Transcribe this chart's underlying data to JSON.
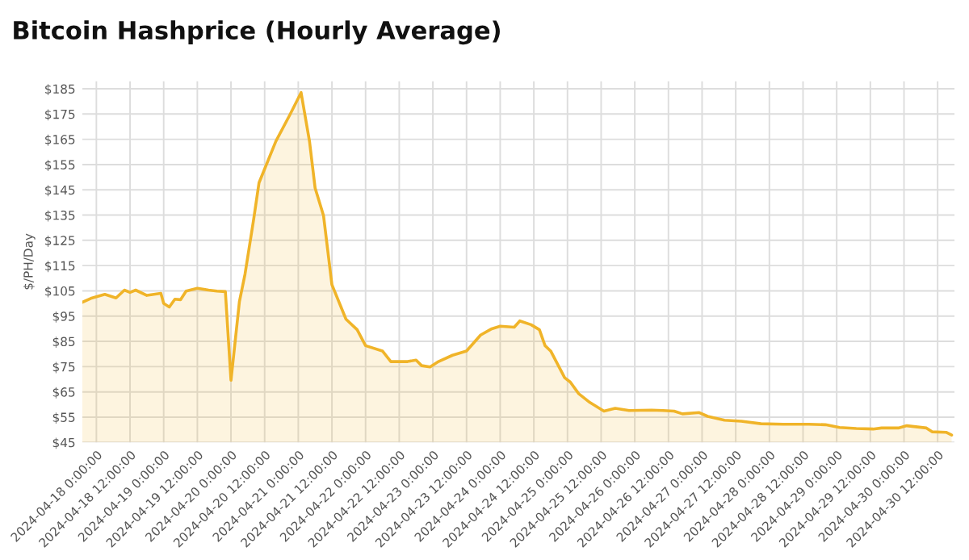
{
  "chart_data": {
    "type": "area",
    "title": "Bitcoin Hashprice (Hourly Average)",
    "ylabel": "$/PH/Day",
    "x": [
      "2024-04-17T19:00",
      "2024-04-17T22:00",
      "2024-04-18T03:00",
      "2024-04-18T07:00",
      "2024-04-18T10:00",
      "2024-04-18T12:00",
      "2024-04-18T14:00",
      "2024-04-18T18:00",
      "2024-04-18T23:00",
      "2024-04-19T00:00",
      "2024-04-19T02:00",
      "2024-04-19T04:00",
      "2024-04-19T06:00",
      "2024-04-19T08:00",
      "2024-04-19T12:00",
      "2024-04-19T16:00",
      "2024-04-19T19:00",
      "2024-04-19T22:00",
      "2024-04-20T00:00",
      "2024-04-20T03:00",
      "2024-04-20T05:00",
      "2024-04-20T08:00",
      "2024-04-20T10:00",
      "2024-04-20T16:00",
      "2024-04-20T21:00",
      "2024-04-21T01:00",
      "2024-04-21T04:00",
      "2024-04-21T06:00",
      "2024-04-21T09:00",
      "2024-04-21T12:00",
      "2024-04-21T17:00",
      "2024-04-21T21:00",
      "2024-04-22T00:00",
      "2024-04-22T06:00",
      "2024-04-22T09:00",
      "2024-04-22T15:00",
      "2024-04-22T18:00",
      "2024-04-22T20:00",
      "2024-04-22T23:00",
      "2024-04-23T02:00",
      "2024-04-23T07:00",
      "2024-04-23T12:00",
      "2024-04-23T17:00",
      "2024-04-23T21:00",
      "2024-04-24T00:00",
      "2024-04-24T05:00",
      "2024-04-24T07:00",
      "2024-04-24T11:00",
      "2024-04-24T14:00",
      "2024-04-24T16:00",
      "2024-04-24T18:00",
      "2024-04-24T23:00",
      "2024-04-25T01:00",
      "2024-04-25T04:00",
      "2024-04-25T08:00",
      "2024-04-25T13:00",
      "2024-04-25T17:00",
      "2024-04-25T22:00",
      "2024-04-26T06:00",
      "2024-04-26T10:00",
      "2024-04-26T14:00",
      "2024-04-26T17:00",
      "2024-04-26T23:00",
      "2024-04-27T02:00",
      "2024-04-27T08:00",
      "2024-04-27T14:00",
      "2024-04-27T21:00",
      "2024-04-28T05:00",
      "2024-04-28T14:00",
      "2024-04-28T20:00",
      "2024-04-29T01:00",
      "2024-04-29T07:00",
      "2024-04-29T13:00",
      "2024-04-29T16:00",
      "2024-04-29T22:00",
      "2024-04-30T01:00",
      "2024-04-30T08:00",
      "2024-04-30T10:00",
      "2024-04-30T15:00",
      "2024-04-30T17:00"
    ],
    "series": [
      {
        "color": "#f0b429",
        "values": [
          100.5,
          102,
          103.6,
          102.2,
          105.3,
          104.4,
          105.3,
          103.2,
          104,
          100,
          98.6,
          101.7,
          101.5,
          104.9,
          106,
          105.3,
          104.9,
          104.7,
          69.6,
          100.7,
          111.6,
          132.7,
          147.8,
          164.2,
          174.7,
          183.5,
          164.2,
          145.7,
          134.8,
          107.4,
          93.8,
          89.6,
          83.3,
          81.2,
          77,
          77,
          77.6,
          75.4,
          74.9,
          77,
          79.5,
          81.2,
          87.5,
          90,
          91,
          90.6,
          93.1,
          91.6,
          89.6,
          83.3,
          81.2,
          70.6,
          68.9,
          64.3,
          60.8,
          57.4,
          58.5,
          57.6,
          57.8,
          57.6,
          57.4,
          56.3,
          56.8,
          55.3,
          53.8,
          53.4,
          52.4,
          52.2,
          52.2,
          52,
          50.9,
          50.5,
          50.3,
          50.7,
          50.7,
          51.6,
          50.7,
          49.2,
          49,
          47.9
        ]
      }
    ],
    "xlim": [
      "2024-04-17T19:00",
      "2024-04-30T18:00"
    ],
    "xticks": [
      {
        "value": "2024-04-18T00:00",
        "label": "2024-04-18 0:00:00"
      },
      {
        "value": "2024-04-18T12:00",
        "label": "2024-04-18 12:00:00"
      },
      {
        "value": "2024-04-19T00:00",
        "label": "2024-04-19 0:00:00"
      },
      {
        "value": "2024-04-19T12:00",
        "label": "2024-04-19 12:00:00"
      },
      {
        "value": "2024-04-20T00:00",
        "label": "2024-04-20 0:00:00"
      },
      {
        "value": "2024-04-20T12:00",
        "label": "2024-04-20 12:00:00"
      },
      {
        "value": "2024-04-21T00:00",
        "label": "2024-04-21 0:00:00"
      },
      {
        "value": "2024-04-21T12:00",
        "label": "2024-04-21 12:00:00"
      },
      {
        "value": "2024-04-22T00:00",
        "label": "2024-04-22 0:00:00"
      },
      {
        "value": "2024-04-22T12:00",
        "label": "2024-04-22 12:00:00"
      },
      {
        "value": "2024-04-23T00:00",
        "label": "2024-04-23 0:00:00"
      },
      {
        "value": "2024-04-23T12:00",
        "label": "2024-04-23 12:00:00"
      },
      {
        "value": "2024-04-24T00:00",
        "label": "2024-04-24 0:00:00"
      },
      {
        "value": "2024-04-24T12:00",
        "label": "2024-04-24 12:00:00"
      },
      {
        "value": "2024-04-25T00:00",
        "label": "2024-04-25 0:00:00"
      },
      {
        "value": "2024-04-25T12:00",
        "label": "2024-04-25 12:00:00"
      },
      {
        "value": "2024-04-26T00:00",
        "label": "2024-04-26 0:00:00"
      },
      {
        "value": "2024-04-26T12:00",
        "label": "2024-04-26 12:00:00"
      },
      {
        "value": "2024-04-27T00:00",
        "label": "2024-04-27 0:00:00"
      },
      {
        "value": "2024-04-27T12:00",
        "label": "2024-04-27 12:00:00"
      },
      {
        "value": "2024-04-28T00:00",
        "label": "2024-04-28 0:00:00"
      },
      {
        "value": "2024-04-28T12:00",
        "label": "2024-04-28 12:00:00"
      },
      {
        "value": "2024-04-29T00:00",
        "label": "2024-04-29 0:00:00"
      },
      {
        "value": "2024-04-29T12:00",
        "label": "2024-04-29 12:00:00"
      },
      {
        "value": "2024-04-30T00:00",
        "label": "2024-04-30 0:00:00"
      },
      {
        "value": "2024-04-30T12:00",
        "label": "2024-04-30 12:00:00"
      }
    ],
    "ylim": [
      45,
      188
    ],
    "yticks": [
      {
        "value": 45,
        "label": "$45"
      },
      {
        "value": 55,
        "label": "$55"
      },
      {
        "value": 65,
        "label": "$65"
      },
      {
        "value": 75,
        "label": "$75"
      },
      {
        "value": 85,
        "label": "$85"
      },
      {
        "value": 95,
        "label": "$95"
      },
      {
        "value": 105,
        "label": "$105"
      },
      {
        "value": 115,
        "label": "$115"
      },
      {
        "value": 125,
        "label": "$125"
      },
      {
        "value": 135,
        "label": "$135"
      },
      {
        "value": 145,
        "label": "$145"
      },
      {
        "value": 155,
        "label": "$155"
      },
      {
        "value": 165,
        "label": "$165"
      },
      {
        "value": 175,
        "label": "$175"
      },
      {
        "value": 185,
        "label": "$185"
      }
    ],
    "grid": true,
    "marker": "none",
    "line_style": "solid"
  }
}
